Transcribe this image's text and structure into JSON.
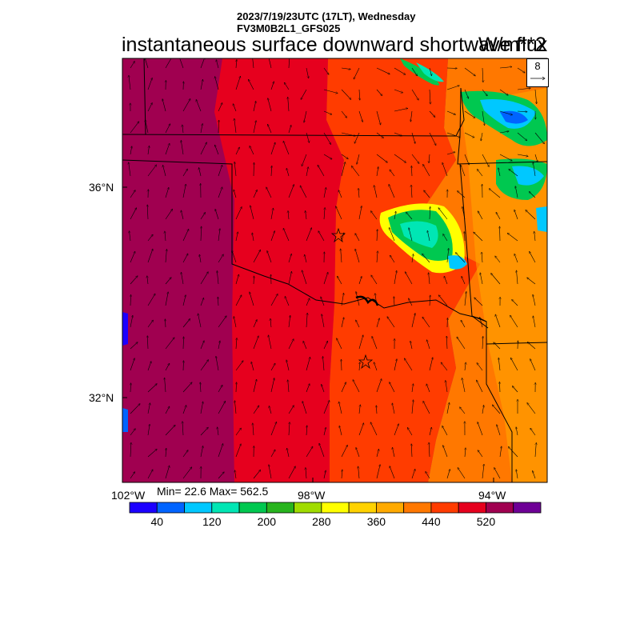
{
  "header": {
    "datetime": "2023/7/19/23UTC (17LT), Wednesday",
    "model": "FV3M0B2L1_GFS025",
    "title": "instantaneous surface downward shortwave flux",
    "units": "W/m**2"
  },
  "map": {
    "lat_labels": [
      "36°N",
      "32°N"
    ],
    "lon_labels": [
      "102°W",
      "98°W",
      "94°W"
    ],
    "reference_vector": "8",
    "markers": [
      "star",
      "star"
    ]
  },
  "stats": {
    "text": "Min= 22.6 Max= 562.5",
    "min": 22.6,
    "max": 562.5
  },
  "colorbar": {
    "colors": [
      "#1c00ff",
      "#0064ff",
      "#00c8ff",
      "#00e6b4",
      "#00c850",
      "#28b41e",
      "#a0dc00",
      "#ffff00",
      "#ffd200",
      "#ffaa00",
      "#ff7800",
      "#ff3c00",
      "#e6001e",
      "#a00050",
      "#6e0096"
    ],
    "labels": [
      "40",
      "120",
      "200",
      "280",
      "360",
      "440",
      "520"
    ]
  }
}
